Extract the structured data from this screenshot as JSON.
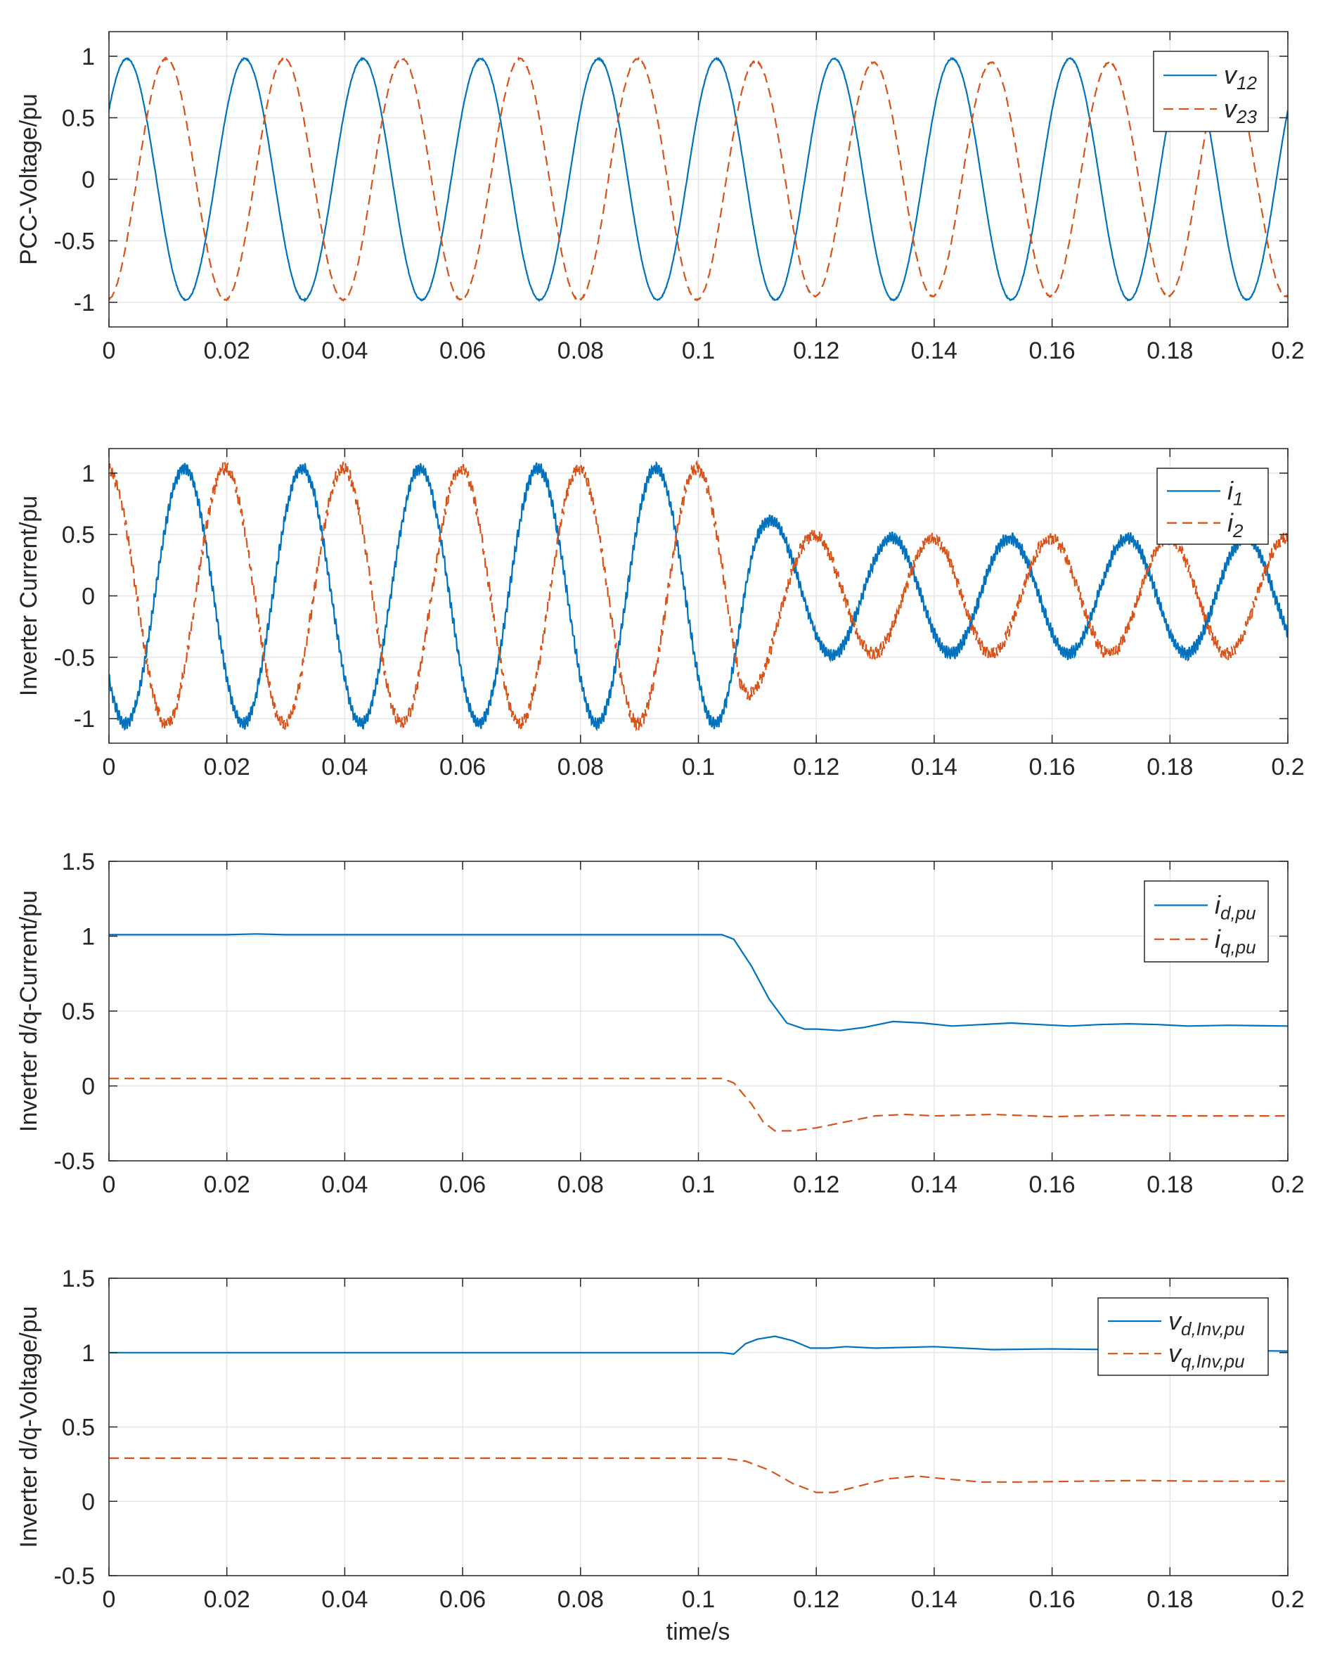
{
  "figure": {
    "xlabel": "time/s",
    "colors": {
      "series1": "#0072BD",
      "series2": "#D95319",
      "grid": "#e6e6e6",
      "axis": "#262626"
    }
  },
  "chart_data": [
    {
      "type": "line",
      "ylabel": "PCC-Voltage/pu",
      "xlim": [
        0,
        0.2
      ],
      "ylim": [
        -1.2,
        1.2
      ],
      "xticks": [
        0,
        0.02,
        0.04,
        0.06,
        0.08,
        0.1,
        0.12,
        0.14,
        0.16,
        0.18,
        0.2
      ],
      "xticklabels": [
        "0",
        "0.02",
        "0.04",
        "0.06",
        "0.08",
        "0.1",
        "0.12",
        "0.14",
        "0.16",
        "0.18",
        "0.2"
      ],
      "yticks": [
        -1,
        -0.5,
        0,
        0.5,
        1
      ],
      "yticklabels": [
        "-1",
        "-0.5",
        "0",
        "0.5",
        "1"
      ],
      "grid": true,
      "legend_position": "top-right",
      "series": [
        {
          "name": "v12",
          "legend_main": "v",
          "legend_sub": "12",
          "style": "solid",
          "color": "#0072BD",
          "model": {
            "kind": "sine",
            "freq": 50,
            "phase_deg": 35,
            "amp_before": 0.98,
            "amp_after": 0.98,
            "t_switch": 0.105,
            "noise": 0.01,
            "ripple": 0.0
          }
        },
        {
          "name": "v23",
          "legend_main": "v",
          "legend_sub": "23",
          "style": "dashed",
          "color": "#D95319",
          "model": {
            "kind": "sine",
            "freq": 50,
            "phase_deg": -85,
            "amp_before": 0.98,
            "amp_after": 0.95,
            "t_switch": 0.105,
            "noise": 0.01,
            "ripple": 0.0
          }
        }
      ]
    },
    {
      "type": "line",
      "ylabel": "Inverter Current/pu",
      "xlim": [
        0,
        0.2
      ],
      "ylim": [
        -1.2,
        1.2
      ],
      "xticks": [
        0,
        0.02,
        0.04,
        0.06,
        0.08,
        0.1,
        0.12,
        0.14,
        0.16,
        0.18,
        0.2
      ],
      "xticklabels": [
        "0",
        "0.02",
        "0.04",
        "0.06",
        "0.08",
        "0.1",
        "0.12",
        "0.14",
        "0.16",
        "0.18",
        "0.2"
      ],
      "yticks": [
        -1,
        -0.5,
        0,
        0.5,
        1
      ],
      "yticklabels": [
        "-1",
        "-0.5",
        "0",
        "0.5",
        "1"
      ],
      "grid": true,
      "legend_position": "top-right",
      "series": [
        {
          "name": "i1",
          "legend_main": "i",
          "legend_sub": "1",
          "style": "solid",
          "color": "#0072BD",
          "model": {
            "kind": "sine",
            "freq": 50,
            "phase_deg": -140,
            "amp_before": 1.04,
            "amp_after": 0.47,
            "t_switch": 0.107,
            "noise": 0.04,
            "ripple": 0.04
          }
        },
        {
          "name": "i2",
          "legend_main": "i",
          "legend_sub": "2",
          "style": "dashed",
          "color": "#D95319",
          "model": {
            "kind": "sine",
            "freq": 50,
            "phase_deg": 95,
            "amp_before": 1.04,
            "amp_after": 0.47,
            "t_switch": 0.107,
            "noise": 0.04,
            "ripple": 0.04
          }
        }
      ]
    },
    {
      "type": "line",
      "ylabel": "Inverter d/q-Current/pu",
      "xlim": [
        0,
        0.2
      ],
      "ylim": [
        -0.5,
        1.5
      ],
      "xticks": [
        0,
        0.02,
        0.04,
        0.06,
        0.08,
        0.1,
        0.12,
        0.14,
        0.16,
        0.18,
        0.2
      ],
      "xticklabels": [
        "0",
        "0.02",
        "0.04",
        "0.06",
        "0.08",
        "0.1",
        "0.12",
        "0.14",
        "0.16",
        "0.18",
        "0.2"
      ],
      "yticks": [
        -0.5,
        0,
        0.5,
        1,
        1.5
      ],
      "yticklabels": [
        "-0.5",
        "0",
        "0.5",
        "1",
        "1.5"
      ],
      "grid": true,
      "legend_position": "top-right",
      "series": [
        {
          "name": "i_d,pu",
          "legend_main": "i",
          "legend_sub": "d,pu",
          "style": "solid",
          "color": "#0072BD",
          "points": [
            [
              0,
              1.01
            ],
            [
              0.02,
              1.01
            ],
            [
              0.025,
              1.015
            ],
            [
              0.03,
              1.01
            ],
            [
              0.104,
              1.01
            ],
            [
              0.106,
              0.98
            ],
            [
              0.109,
              0.8
            ],
            [
              0.112,
              0.58
            ],
            [
              0.115,
              0.42
            ],
            [
              0.118,
              0.38
            ],
            [
              0.12,
              0.38
            ],
            [
              0.124,
              0.37
            ],
            [
              0.128,
              0.39
            ],
            [
              0.133,
              0.43
            ],
            [
              0.138,
              0.42
            ],
            [
              0.143,
              0.4
            ],
            [
              0.148,
              0.41
            ],
            [
              0.153,
              0.42
            ],
            [
              0.158,
              0.41
            ],
            [
              0.163,
              0.4
            ],
            [
              0.168,
              0.41
            ],
            [
              0.173,
              0.415
            ],
            [
              0.178,
              0.41
            ],
            [
              0.183,
              0.4
            ],
            [
              0.19,
              0.405
            ],
            [
              0.2,
              0.4
            ]
          ]
        },
        {
          "name": "i_q,pu",
          "legend_main": "i",
          "legend_sub": "q,pu",
          "style": "dashed",
          "color": "#D95319",
          "points": [
            [
              0,
              0.05
            ],
            [
              0.104,
              0.05
            ],
            [
              0.106,
              0.02
            ],
            [
              0.109,
              -0.12
            ],
            [
              0.111,
              -0.24
            ],
            [
              0.113,
              -0.3
            ],
            [
              0.116,
              -0.3
            ],
            [
              0.12,
              -0.28
            ],
            [
              0.125,
              -0.24
            ],
            [
              0.13,
              -0.2
            ],
            [
              0.135,
              -0.19
            ],
            [
              0.14,
              -0.2
            ],
            [
              0.15,
              -0.19
            ],
            [
              0.16,
              -0.205
            ],
            [
              0.17,
              -0.195
            ],
            [
              0.18,
              -0.2
            ],
            [
              0.19,
              -0.2
            ],
            [
              0.2,
              -0.2
            ]
          ]
        }
      ]
    },
    {
      "type": "line",
      "ylabel": "Inverter d/q-Voltage/pu",
      "xlim": [
        0,
        0.2
      ],
      "ylim": [
        -0.5,
        1.5
      ],
      "xticks": [
        0,
        0.02,
        0.04,
        0.06,
        0.08,
        0.1,
        0.12,
        0.14,
        0.16,
        0.18,
        0.2
      ],
      "xticklabels": [
        "0",
        "0.02",
        "0.04",
        "0.06",
        "0.08",
        "0.1",
        "0.12",
        "0.14",
        "0.16",
        "0.18",
        "0.2"
      ],
      "yticks": [
        -0.5,
        0,
        0.5,
        1,
        1.5
      ],
      "yticklabels": [
        "-0.5",
        "0",
        "0.5",
        "1",
        "1.5"
      ],
      "grid": true,
      "legend_position": "top-right",
      "series": [
        {
          "name": "v_d,Inv,pu",
          "legend_main": "v",
          "legend_sub": "d,Inv,pu",
          "style": "solid",
          "color": "#0072BD",
          "points": [
            [
              0,
              1.0
            ],
            [
              0.1,
              1.0
            ],
            [
              0.104,
              1.0
            ],
            [
              0.106,
              0.99
            ],
            [
              0.108,
              1.06
            ],
            [
              0.11,
              1.09
            ],
            [
              0.113,
              1.11
            ],
            [
              0.116,
              1.08
            ],
            [
              0.119,
              1.03
            ],
            [
              0.122,
              1.03
            ],
            [
              0.125,
              1.04
            ],
            [
              0.13,
              1.03
            ],
            [
              0.14,
              1.04
            ],
            [
              0.15,
              1.02
            ],
            [
              0.16,
              1.025
            ],
            [
              0.17,
              1.02
            ],
            [
              0.18,
              1.02
            ],
            [
              0.19,
              1.015
            ],
            [
              0.2,
              1.01
            ]
          ]
        },
        {
          "name": "v_q,Inv,pu",
          "legend_main": "v",
          "legend_sub": "q,Inv,pu",
          "style": "dashed",
          "color": "#D95319",
          "points": [
            [
              0,
              0.29
            ],
            [
              0.104,
              0.29
            ],
            [
              0.108,
              0.27
            ],
            [
              0.112,
              0.21
            ],
            [
              0.116,
              0.12
            ],
            [
              0.12,
              0.06
            ],
            [
              0.123,
              0.06
            ],
            [
              0.127,
              0.1
            ],
            [
              0.132,
              0.15
            ],
            [
              0.137,
              0.17
            ],
            [
              0.142,
              0.15
            ],
            [
              0.148,
              0.13
            ],
            [
              0.155,
              0.13
            ],
            [
              0.165,
              0.135
            ],
            [
              0.175,
              0.14
            ],
            [
              0.185,
              0.135
            ],
            [
              0.2,
              0.135
            ]
          ]
        }
      ]
    }
  ]
}
